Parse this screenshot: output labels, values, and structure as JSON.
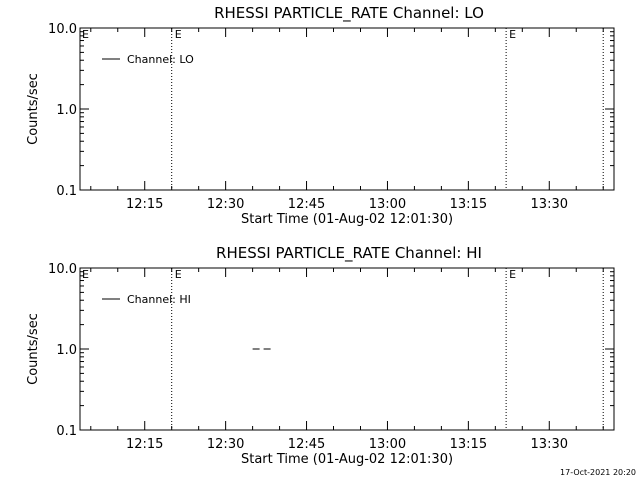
{
  "chart_data": [
    {
      "type": "line",
      "title": "RHESSI PARTICLE_RATE Channel: LO",
      "xlabel": "Start Time (01-Aug-02 12:01:30)",
      "ylabel": "Counts/sec",
      "y_scale": "log",
      "ylim": [
        0.1,
        10.0
      ],
      "y_ticks": [
        {
          "value": 0.1,
          "label": "0.1"
        },
        {
          "value": 1.0,
          "label": "1.0"
        },
        {
          "value": 10.0,
          "label": "10.0"
        }
      ],
      "xlim": [
        "12:03",
        "13:42"
      ],
      "x_ticks": [
        "12:15",
        "12:30",
        "12:45",
        "13:00",
        "13:15",
        "13:30"
      ],
      "grid": false,
      "legend_position": "top-left",
      "series": [
        {
          "name": "Channel: LO",
          "x": [],
          "y": []
        }
      ],
      "markers": [
        {
          "time": "12:20",
          "label": "E"
        },
        {
          "time": "13:22",
          "label": "E"
        },
        {
          "time": "13:40",
          "label": ""
        }
      ]
    },
    {
      "type": "line",
      "title": "RHESSI PARTICLE_RATE Channel: HI",
      "xlabel": "Start Time (01-Aug-02 12:01:30)",
      "ylabel": "Counts/sec",
      "y_scale": "log",
      "ylim": [
        0.1,
        10.0
      ],
      "y_ticks": [
        {
          "value": 0.1,
          "label": "0.1"
        },
        {
          "value": 1.0,
          "label": "1.0"
        },
        {
          "value": 10.0,
          "label": "10.0"
        }
      ],
      "xlim": [
        "12:03",
        "13:42"
      ],
      "x_ticks": [
        "12:15",
        "12:30",
        "12:45",
        "13:00",
        "13:15",
        "13:30"
      ],
      "grid": false,
      "legend_position": "top-left",
      "series": [
        {
          "name": "Channel: HI",
          "x": [
            "12:35",
            "12:39"
          ],
          "y": [
            1.0,
            1.0
          ],
          "style": "dashed"
        }
      ],
      "markers": [
        {
          "time": "12:20",
          "label": "E"
        },
        {
          "time": "13:22",
          "label": "E"
        },
        {
          "time": "13:40",
          "label": ""
        }
      ]
    }
  ],
  "footer": {
    "timestamp": "17-Oct-2021 20:20"
  },
  "colors": {
    "axes": "#000000",
    "background": "#ffffff"
  }
}
